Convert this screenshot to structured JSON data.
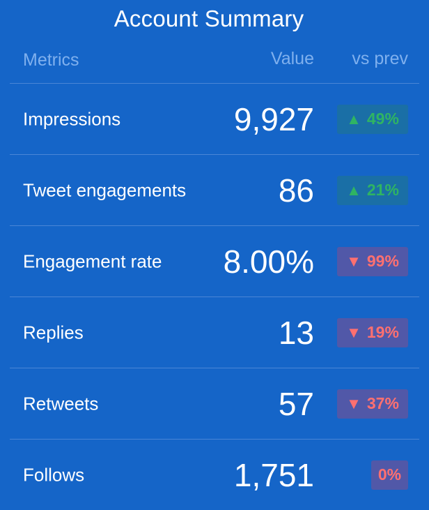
{
  "title": "Account Summary",
  "columns": {
    "metric": "Metrics",
    "value": "Value",
    "change": "vs prev"
  },
  "rows": [
    {
      "label": "Impressions",
      "value": "9,927",
      "change": "49%",
      "direction": "up"
    },
    {
      "label": "Tweet engagements",
      "value": "86",
      "change": "21%",
      "direction": "up"
    },
    {
      "label": "Engagement rate",
      "value": "8.00%",
      "change": "99%",
      "direction": "down"
    },
    {
      "label": "Replies",
      "value": "13",
      "change": "19%",
      "direction": "down"
    },
    {
      "label": "Retweets",
      "value": "57",
      "change": "37%",
      "direction": "down"
    },
    {
      "label": "Follows",
      "value": "1,751",
      "change": "0%",
      "direction": "flat"
    }
  ],
  "colors": {
    "background": "#1565c8",
    "up": "#2fb463",
    "down": "#ff7070"
  }
}
